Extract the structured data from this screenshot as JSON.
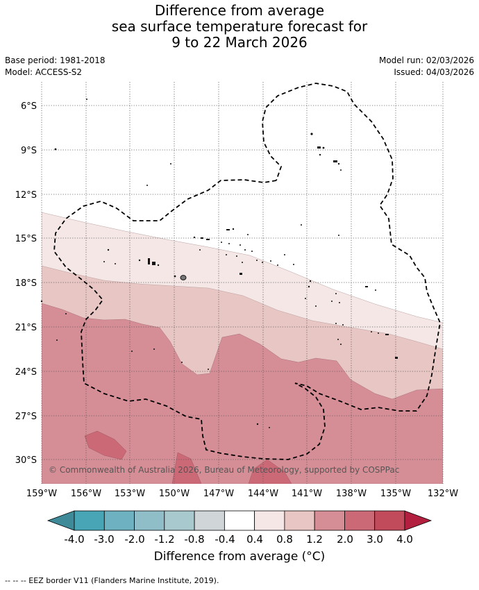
{
  "title": {
    "line1": "Difference from average",
    "line2": "sea surface temperature forecast for",
    "line3": "9 to 22 March 2026"
  },
  "meta": {
    "base_period": "Base period: 1981-2018",
    "model": "Model: ACCESS-S2",
    "model_run": "Model run: 02/03/2026",
    "issued": "Issued: 04/03/2026"
  },
  "map": {
    "lat_labels": [
      "6°S",
      "9°S",
      "12°S",
      "15°S",
      "18°S",
      "21°S",
      "24°S",
      "27°S",
      "30°S"
    ],
    "lon_labels": [
      "159°W",
      "156°W",
      "153°W",
      "150°W",
      "147°W",
      "144°W",
      "141°W",
      "138°W",
      "135°W",
      "132°W"
    ],
    "copyright": "© Commonwealth of Australia 2026, Bureau of Meteorology, supported by COSPPac",
    "colors": {
      "band_0_4": "#ffffff",
      "band_0_8": "#f4e7e6",
      "band_1_2": "#e8c6c3",
      "band_2_0": "#d68e96",
      "band_3_0": "#cc6977"
    }
  },
  "colorbar": {
    "labels": [
      "-4.0",
      "-3.0",
      "-2.0",
      "-1.2",
      "-0.8",
      "-0.4",
      "0.4",
      "0.8",
      "1.2",
      "2.0",
      "3.0",
      "4.0"
    ],
    "colors": [
      "#3e8a98",
      "#47a5b5",
      "#6eb1c0",
      "#8fbdc8",
      "#a8c9cd",
      "#d0d5d8",
      "#ffffff",
      "#f4e7e6",
      "#e8c6c3",
      "#d68e96",
      "#cc6977",
      "#c14a5b",
      "#b3203f"
    ],
    "unit_label": "Difference from average (°C)"
  },
  "footer": "--  --  -- EEZ border V11 (Flanders Marine Institute, 2019)."
}
